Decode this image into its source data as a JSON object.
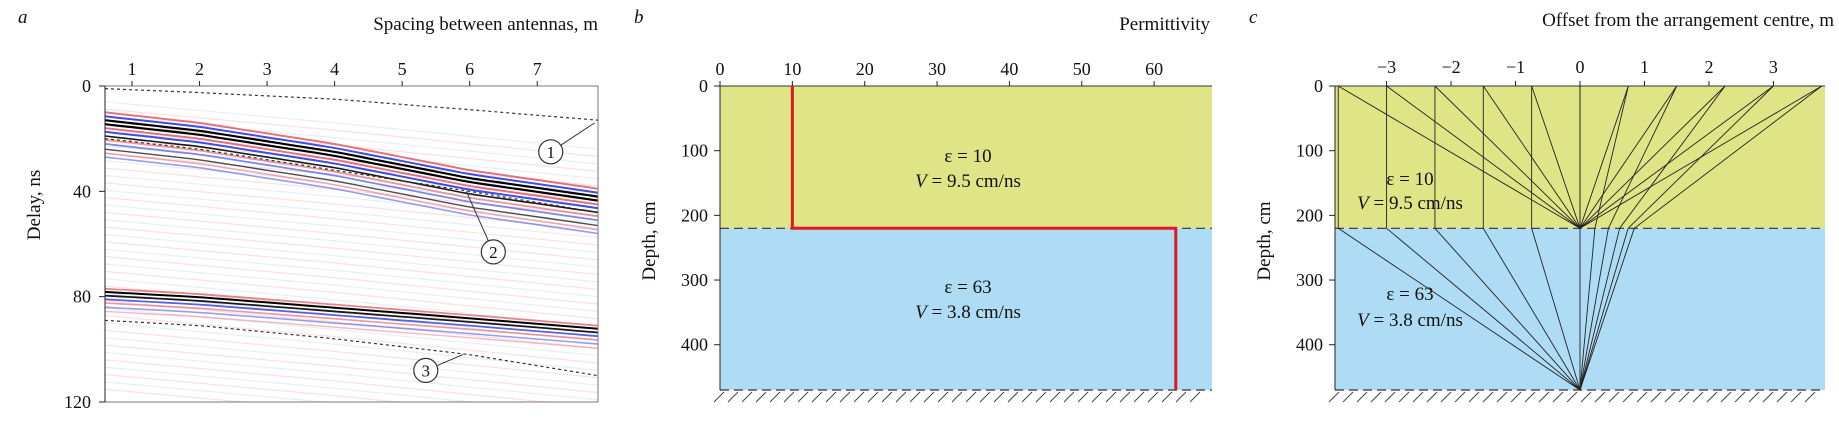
{
  "colors": {
    "upper_layer": "#dfe487",
    "lower_layer": "#aedcf5",
    "permittivity_line": "#e0181f",
    "trace_red": "#e0505a",
    "trace_blue": "#2a3be0",
    "trace_black": "#000000"
  },
  "panels": {
    "a": {
      "letter": "a",
      "xlabel": "Spacing between antennas, m",
      "ylabel": "Delay, ns",
      "callouts": [
        "1",
        "2",
        "3"
      ]
    },
    "b": {
      "letter": "b",
      "xlabel": "Permittivity",
      "ylabel": "Depth, cm",
      "upper_eps": "ε = 10",
      "upper_v_prefix": "V",
      "upper_v_value": " = 9.5 cm/ns",
      "lower_eps": "ε = 63",
      "lower_v_prefix": "V",
      "lower_v_value": " = 3.8 cm/ns"
    },
    "c": {
      "letter": "c",
      "xlabel": "Offset from the arrangement centre, m",
      "ylabel": "Depth, cm",
      "upper_eps": "ε = 10",
      "upper_v_prefix": "V",
      "upper_v_value": " = 9.5 cm/ns",
      "lower_eps": "ε = 63",
      "lower_v_prefix": "V",
      "lower_v_value": " = 3.8 cm/ns"
    }
  },
  "chart_data": [
    {
      "panel": "a",
      "type": "heatmap",
      "xlabel": "Spacing between antennas, m",
      "ylabel": "Delay, ns",
      "xlim": [
        0.6,
        7.9
      ],
      "ylim": [
        120,
        0
      ],
      "x_axis_position": "top",
      "x_ticks": [
        1,
        2,
        3,
        4,
        5,
        6,
        7
      ],
      "y_ticks": [
        0,
        40,
        80,
        120
      ],
      "series": [
        {
          "name": "1",
          "style": "dashed",
          "x": [
            0.6,
            2,
            4,
            6,
            7.9
          ],
          "y": [
            1,
            2.5,
            5,
            9,
            13
          ]
        },
        {
          "name": "2",
          "style": "dashed",
          "x": [
            0.6,
            2,
            4,
            6,
            7.9
          ],
          "y": [
            20,
            24,
            32,
            40,
            48
          ]
        },
        {
          "name": "3",
          "style": "dashed",
          "x": [
            0.6,
            2,
            4,
            6,
            7.9
          ],
          "y": [
            89,
            91,
            96,
            102,
            110
          ]
        }
      ],
      "reflections": [
        {
          "x": [
            0.6,
            2,
            4,
            6,
            7.9
          ],
          "y": [
            14,
            18,
            26,
            36,
            43
          ]
        },
        {
          "x": [
            0.6,
            2,
            4,
            6,
            7.9
          ],
          "y": [
            79,
            81,
            85,
            89,
            93
          ]
        }
      ]
    },
    {
      "panel": "b",
      "type": "line",
      "xlabel": "Permittivity",
      "ylabel": "Depth, cm",
      "xlim": [
        0,
        68
      ],
      "ylim": [
        470,
        0
      ],
      "x_axis_position": "top",
      "x_ticks": [
        0,
        10,
        20,
        30,
        40,
        50,
        60
      ],
      "y_ticks": [
        0,
        100,
        200,
        300,
        400
      ],
      "layers": [
        {
          "top": 0,
          "bottom": 220,
          "permittivity": 10,
          "velocity": 9.5
        },
        {
          "top": 220,
          "bottom": 470,
          "permittivity": 63,
          "velocity": 3.8
        }
      ],
      "series": [
        {
          "x": [
            10,
            10,
            63,
            63
          ],
          "y": [
            0,
            220,
            220,
            470
          ]
        }
      ]
    },
    {
      "panel": "c",
      "type": "line",
      "xlabel": "Offset from the arrangement centre, m",
      "ylabel": "Depth, cm",
      "xlim": [
        -3.8,
        3.8
      ],
      "ylim": [
        470,
        0
      ],
      "x_axis_position": "top",
      "x_ticks": [
        -3,
        -2,
        -1,
        0,
        1,
        2,
        3
      ],
      "y_ticks": [
        0,
        100,
        200,
        300,
        400
      ],
      "interface_depth": 220,
      "bottom_depth": 470,
      "ray_surface_offsets": [
        -3.75,
        -3,
        -2.25,
        -1.5,
        -0.75,
        0,
        0.75,
        1.5,
        2.25,
        3,
        3.75
      ],
      "ray_sources": [
        {
          "x": 0,
          "y": 220
        },
        {
          "x": 0,
          "y": 470
        }
      ]
    }
  ]
}
